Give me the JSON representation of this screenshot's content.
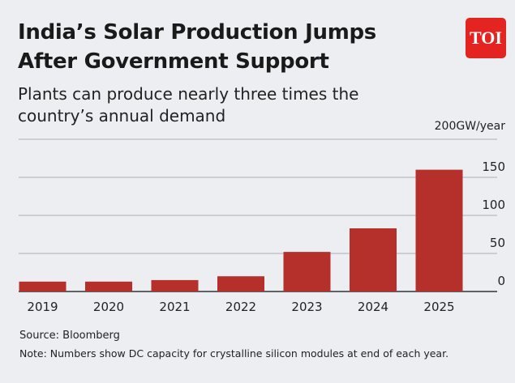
{
  "header": {
    "title": "India’s Solar Production Jumps After Government Support",
    "subtitle": "Plants can produce nearly three times the country’s annual demand",
    "logo": "TOI"
  },
  "chart_data": {
    "type": "bar",
    "title": "India’s Solar Production Jumps After Government Support",
    "subtitle": "Plants can produce nearly three times the country’s annual demand",
    "categories": [
      "2019",
      "2020",
      "2021",
      "2022",
      "2023",
      "2024",
      "2025"
    ],
    "values": [
      13,
      13,
      15,
      20,
      52,
      83,
      160
    ],
    "unit_label": "200GW/year",
    "yticks": [
      0,
      50,
      100,
      150,
      200
    ],
    "ytick_labels": [
      "0",
      "50",
      "100",
      "150",
      "200GW/year"
    ],
    "ylim": [
      0,
      200
    ],
    "grid": true,
    "colors": {
      "bar": "#b5302a",
      "background": "#eceef2",
      "grid": "#b9bcc1"
    }
  },
  "footer": {
    "source": "Source: Bloomberg",
    "note": "Note: Numbers show DC capacity for crystalline silicon modules at end of each year."
  }
}
